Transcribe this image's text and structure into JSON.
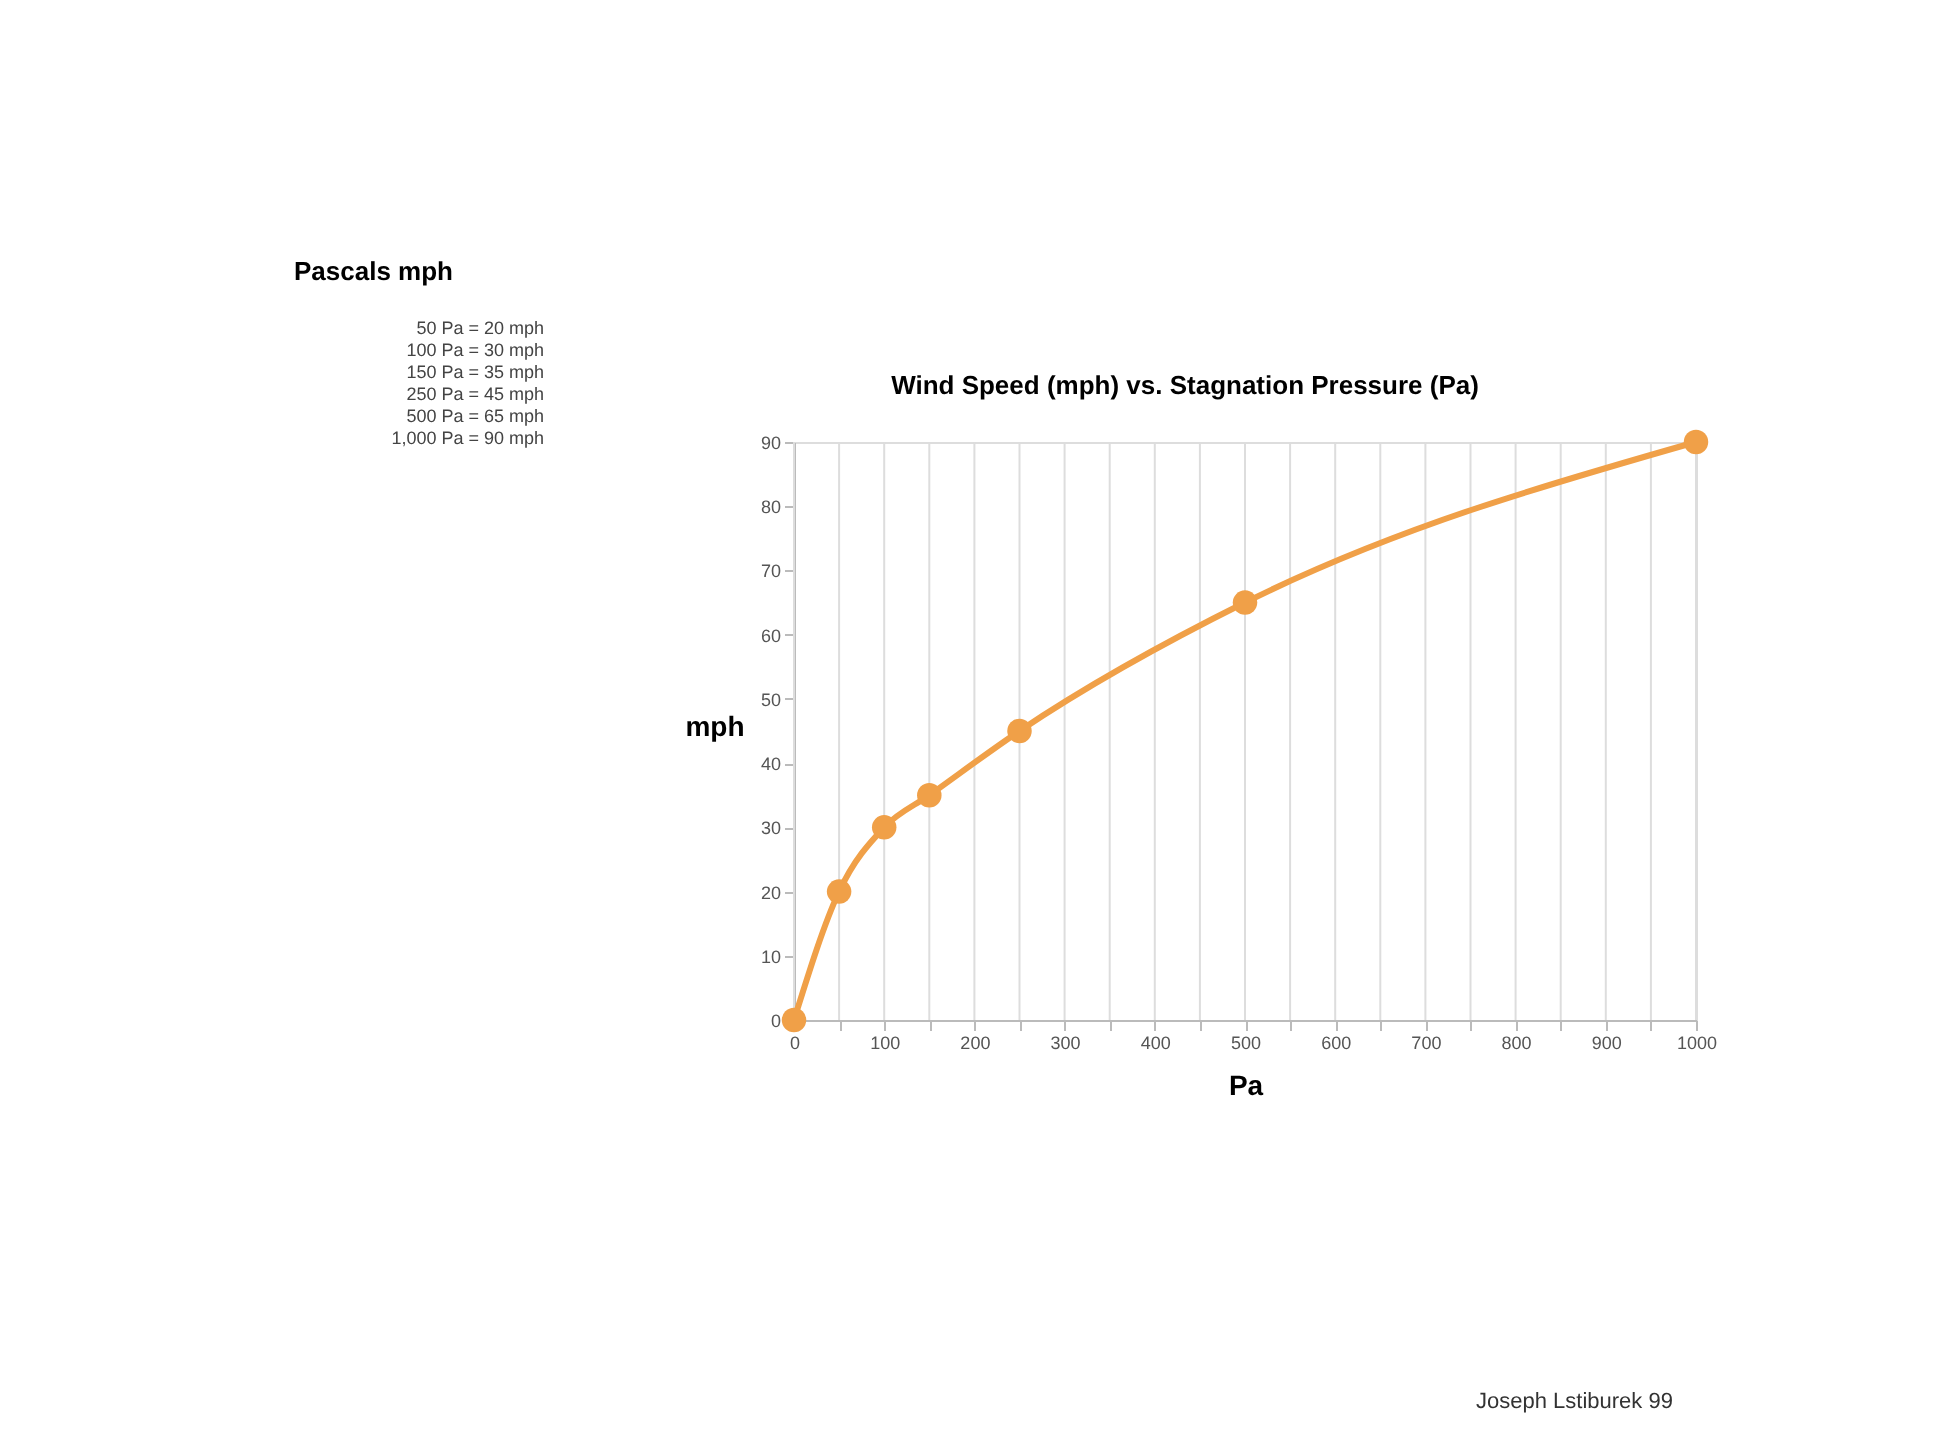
{
  "chart_data": {
    "type": "line",
    "title": "Wind Speed (mph) vs. Stagnation Pressure (Pa)",
    "xlabel": "Pa",
    "ylabel": "mph",
    "x": [
      0,
      50,
      100,
      150,
      250,
      500,
      1000
    ],
    "series": [
      {
        "color": "#f0a048",
        "values": [
          0,
          20,
          30,
          35,
          45,
          65,
          90
        ]
      }
    ],
    "xlim": [
      0,
      1000
    ],
    "xticks": [
      0,
      {
        "value": 50,
        "label": null
      },
      100,
      {
        "value": 150,
        "label": null
      },
      200,
      {
        "value": 250,
        "label": null
      },
      300,
      {
        "value": 350,
        "label": null
      },
      400,
      {
        "value": 450,
        "label": null
      },
      500,
      {
        "value": 550,
        "label": null
      },
      600,
      {
        "value": 650,
        "label": null
      },
      700,
      {
        "value": 750,
        "label": null
      },
      800,
      {
        "value": 850,
        "label": null
      },
      900,
      {
        "value": 950,
        "label": null
      },
      1000
    ],
    "ylim": [
      0,
      90
    ],
    "yticks": [
      0,
      10,
      20,
      30,
      40,
      50,
      60,
      70,
      80,
      90
    ],
    "grid": "x",
    "marker": "circle",
    "line_style": "solid",
    "annotations": [
      "Pascals   mph",
      "50  Pa =  20  mph",
      "100  Pa =  30  mph",
      "150  Pa =  35  mph",
      "250  Pa =  45  mph",
      "500  Pa =  65  mph",
      "1,000  Pa =  90  mph",
      "Joseph Lstiburek 99"
    ]
  }
}
